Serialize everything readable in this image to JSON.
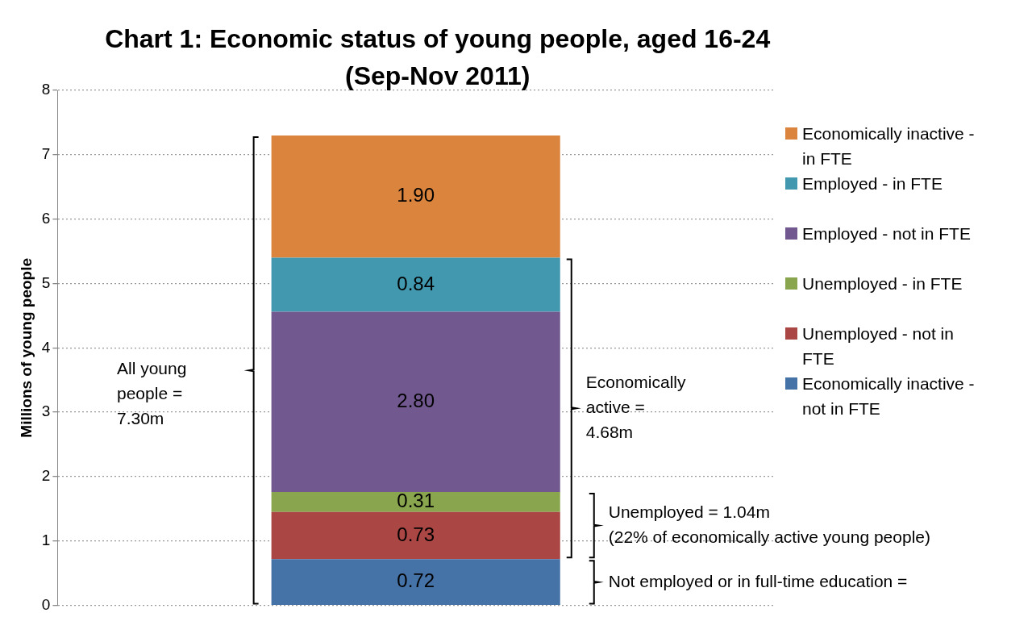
{
  "chart_data": {
    "type": "bar",
    "title": "Chart 1: Economic status of young people, aged 16-24",
    "subtitle": "(Sep-Nov 2011)",
    "ylabel": "Millions of young people",
    "categories": [
      null
    ],
    "stacked": true,
    "series": [
      {
        "name": "Economically inactive - not in FTE",
        "color": "#4572a7",
        "values": [
          0.72
        ],
        "value_labels": [
          "0.72"
        ]
      },
      {
        "name": "Unemployed -  not in FTE",
        "color": "#aa4643",
        "values": [
          0.73
        ],
        "value_labels": [
          "0.73"
        ]
      },
      {
        "name": "Unemployed - in FTE",
        "color": "#89a54e",
        "values": [
          0.31
        ],
        "value_labels": [
          "0.31"
        ]
      },
      {
        "name": "Employed - not in FTE",
        "color": "#71588f",
        "values": [
          2.8
        ],
        "value_labels": [
          "2.80"
        ]
      },
      {
        "name": "Employed - in FTE",
        "color": "#4198af",
        "values": [
          0.84
        ],
        "value_labels": [
          "0.84"
        ]
      },
      {
        "name": "Economically inactive - in FTE",
        "color": "#db843d",
        "values": [
          1.9
        ],
        "value_labels": [
          "1.90"
        ]
      }
    ],
    "ylim": [
      0,
      8
    ],
    "yticks": [
      0,
      1,
      2,
      3,
      4,
      5,
      6,
      7,
      8
    ],
    "grid": "y",
    "legend": "right",
    "annotations": [
      "All young\npeople =\n7.30m",
      "Economically\nactive =\n4.68m",
      "Unemployed = 1.04m\n(22% of economically active young people)",
      "Not employed or in full-time education ="
    ]
  }
}
